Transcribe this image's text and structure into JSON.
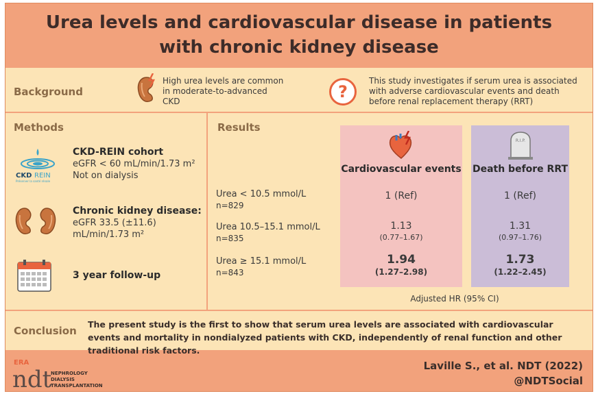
{
  "title": {
    "line1": "Urea levels and cardiovascular disease in patients",
    "line2": "with chronic kidney disease"
  },
  "background": {
    "label": "Background",
    "text1": "High urea levels are common in moderate-to-advanced CKD",
    "text2": "This study investigates if serum urea is associated with adverse cardiovascular events and death before renal replacement therapy (RRT)",
    "question_mark": "?"
  },
  "methods": {
    "label": "Methods",
    "logo_text": "CKD",
    "logo_text2": "REIN",
    "logo_tagline": "Préserver la santé rénale",
    "cohort": {
      "heading": "CKD-REIN cohort",
      "line1": "eGFR < 60 mL/min/1.73 m²",
      "line2": "Not on dialysis"
    },
    "ckd": {
      "heading": "Chronic kidney disease:",
      "line1": "eGFR 33.5 (±11.6)",
      "line2": "mL/min/1.73 m²"
    },
    "followup": {
      "heading": "3 year follow-up"
    }
  },
  "results": {
    "label": "Results",
    "columns": {
      "cv": "Cardiovascular events",
      "death": "Death before RRT"
    },
    "tombstone_text": "R.I.P.",
    "rows": [
      {
        "label": "Urea < 10.5 mmol/L",
        "n": "n=829",
        "cv": "1 (Ref)",
        "cv_ci": "",
        "death": "1 (Ref)",
        "death_ci": ""
      },
      {
        "label": "Urea 10.5–15.1 mmol/L",
        "n": "n=835",
        "cv": "1.13",
        "cv_ci": "(0.77–1.67)",
        "death": "1.31",
        "death_ci": "(0.97–1.76)"
      },
      {
        "label": "Urea ≥ 15.1 mmol/L",
        "n": "n=843",
        "cv": "1.94",
        "cv_ci": "(1.27–2.98)",
        "death": "1.73",
        "death_ci": "(1.22–2.45)"
      }
    ],
    "note": "Adjusted HR (95% CI)"
  },
  "conclusion": {
    "label": "Conclusion",
    "text": "The present study is the first to show that serum urea levels are associated with cardiovascular events and mortality in nondialyzed patients with CKD, independently of renal function and other traditional risk factors."
  },
  "footer": {
    "era": "ERA",
    "ndt": "ndt",
    "journal1": "NEPHROLOGY",
    "journal2": "DIALYSIS",
    "journal3": "TRANSPLANTATION",
    "citation": "Laville S., et al. NDT (2022)",
    "handle": "@NDTSocial"
  },
  "colors": {
    "frame": "#f2a27c",
    "panel": "#fce4b6",
    "cv_column": "#f4c3c0",
    "death_column": "#cbbdd7",
    "accent": "#e8643e"
  }
}
